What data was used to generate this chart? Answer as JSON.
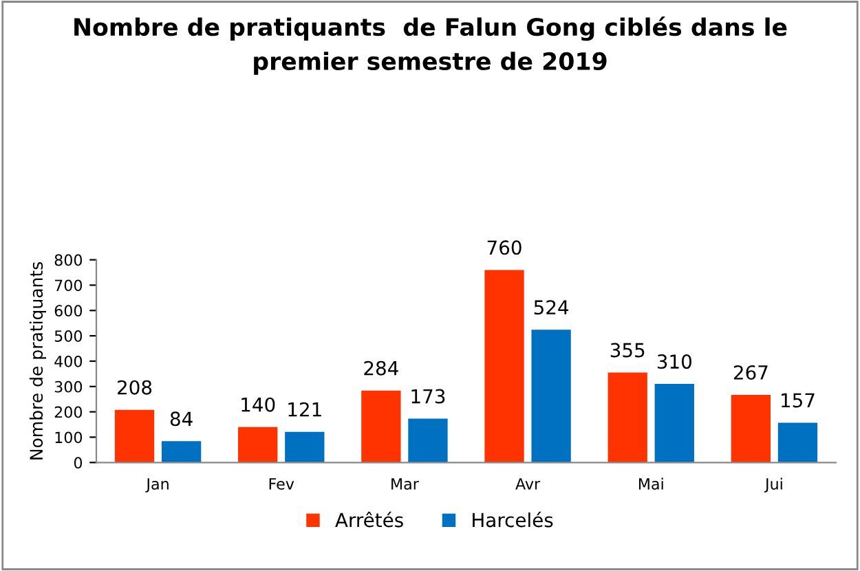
{
  "chart_data": {
    "type": "bar",
    "title": "Nombre de pratiquants  de Falun Gong ciblés dans le\npremier semestre de 2019",
    "ylabel": "Nombre de pratiquants",
    "categories": [
      "Jan",
      "Fev",
      "Mar",
      "Avr",
      "Mai",
      "Jui"
    ],
    "series": [
      {
        "name": "Arrêtés",
        "color": "#ff3300",
        "values": [
          208,
          140,
          284,
          760,
          355,
          267
        ]
      },
      {
        "name": "Harcelés",
        "color": "#0070c0",
        "values": [
          84,
          121,
          173,
          524,
          310,
          157
        ]
      }
    ],
    "ylim": [
      0,
      800
    ],
    "yticks": [
      0,
      100,
      200,
      300,
      400,
      500,
      600,
      700,
      800
    ],
    "data_labels": true,
    "legend": "bottom",
    "grid": false
  }
}
